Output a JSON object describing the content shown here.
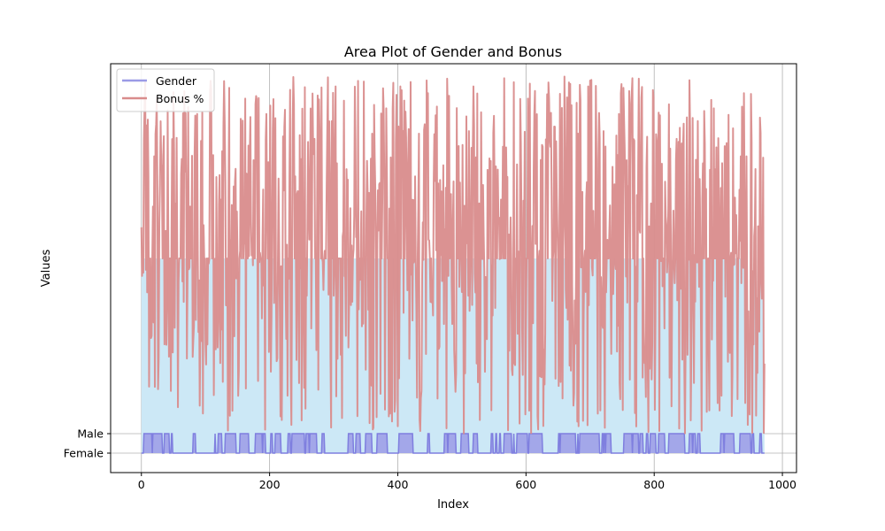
{
  "chart_data": {
    "type": "area",
    "title": "Area Plot of Gender and Bonus",
    "xlabel": "Index",
    "ylabel": "Values",
    "xlim": [
      -48,
      1022
    ],
    "xticks": [
      0,
      200,
      400,
      600,
      800,
      1000
    ],
    "xtick_labels": [
      "0",
      "200",
      "400",
      "600",
      "800",
      "1000"
    ],
    "ylim": [
      -1,
      20
    ],
    "yticks": [
      0,
      1
    ],
    "ytick_labels": [
      "Female",
      "Male"
    ],
    "grid": true,
    "legend": "top-left",
    "n_points": 973,
    "series": [
      {
        "name": "Gender",
        "kind": "binary step, 0 = Female, 1 = Male",
        "line_color": "#7f7fdf",
        "fill_color": "#9b9be6",
        "value_range": [
          0,
          1
        ]
      },
      {
        "name": "Bonus %",
        "kind": "noisy line, values about 1 to 20",
        "line_color": "#d98c8c",
        "fill_color": "#cce8f6",
        "value_range": [
          1,
          19.4
        ],
        "fill_plateau": 10
      }
    ]
  },
  "colors": {
    "axes_edge": "#000000",
    "grid": "#b0b0b0",
    "legend_border": "#cccccc"
  }
}
